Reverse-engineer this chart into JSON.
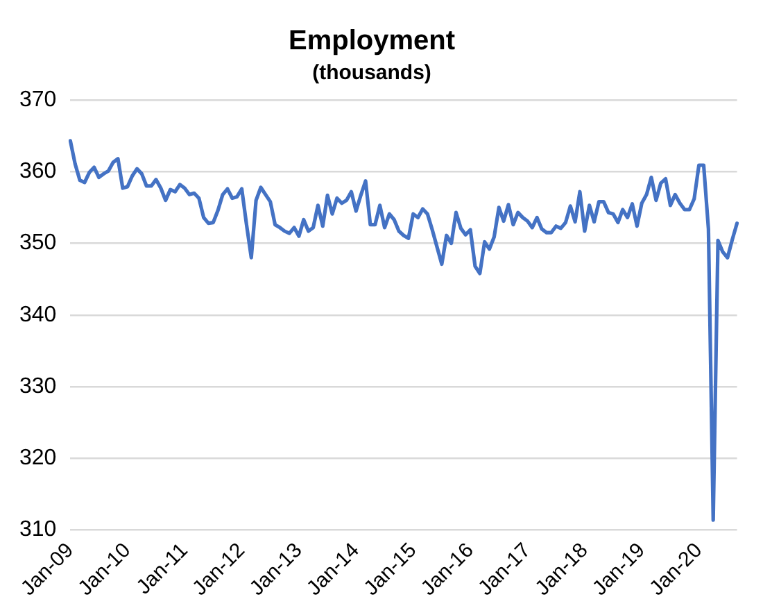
{
  "chart_data": {
    "type": "line",
    "title": "Employment",
    "subtitle": "(thousands)",
    "categories": [
      "Jan-09",
      null,
      null,
      null,
      null,
      null,
      null,
      null,
      null,
      null,
      null,
      null,
      "Jan-10",
      null,
      null,
      null,
      null,
      null,
      null,
      null,
      null,
      null,
      null,
      null,
      "Jan-11",
      null,
      null,
      null,
      null,
      null,
      null,
      null,
      null,
      null,
      null,
      null,
      "Jan-12",
      null,
      null,
      null,
      null,
      null,
      null,
      null,
      null,
      null,
      null,
      null,
      "Jan-13",
      null,
      null,
      null,
      null,
      null,
      null,
      null,
      null,
      null,
      null,
      null,
      "Jan-14",
      null,
      null,
      null,
      null,
      null,
      null,
      null,
      null,
      null,
      null,
      null,
      "Jan-15",
      null,
      null,
      null,
      null,
      null,
      null,
      null,
      null,
      null,
      null,
      null,
      "Jan-16",
      null,
      null,
      null,
      null,
      null,
      null,
      null,
      null,
      null,
      null,
      null,
      "Jan-17",
      null,
      null,
      null,
      null,
      null,
      null,
      null,
      null,
      null,
      null,
      null,
      "Jan-18",
      null,
      null,
      null,
      null,
      null,
      null,
      null,
      null,
      null,
      null,
      null,
      "Jan-19",
      null,
      null,
      null,
      null,
      null,
      null,
      null,
      null,
      null,
      null,
      null,
      "Jan-20",
      null,
      null,
      null,
      null,
      null,
      null,
      null,
      null
    ],
    "series": [
      {
        "color": "#4472c4",
        "values": [
          364.3,
          361.1,
          358.8,
          358.5,
          359.9,
          360.6,
          359.2,
          359.7,
          360.1,
          361.3,
          361.8,
          357.7,
          357.9,
          359.4,
          360.4,
          359.7,
          358.0,
          358.0,
          358.9,
          357.7,
          356.0,
          357.5,
          357.2,
          358.2,
          357.7,
          356.8,
          357.0,
          356.3,
          353.6,
          352.8,
          352.9,
          354.6,
          356.8,
          357.6,
          356.3,
          356.5,
          357.6,
          352.6,
          348.0,
          356.0,
          357.8,
          356.8,
          355.8,
          352.6,
          352.2,
          351.7,
          351.4,
          352.2,
          351.0,
          353.3,
          351.7,
          352.2,
          355.3,
          352.4,
          356.7,
          354.1,
          356.3,
          355.6,
          356.0,
          357.2,
          354.5,
          356.7,
          358.7,
          352.6,
          352.6,
          355.3,
          352.2,
          354.1,
          353.3,
          351.7,
          351.1,
          350.7,
          354.1,
          353.6,
          354.8,
          354.1,
          351.9,
          349.5,
          347.1,
          351.1,
          350.0,
          354.3,
          352.1,
          351.2,
          351.9,
          346.8,
          345.8,
          350.2,
          349.2,
          350.9,
          355.0,
          353.1,
          355.4,
          352.6,
          354.3,
          353.6,
          353.1,
          352.2,
          353.6,
          352.0,
          351.5,
          351.5,
          352.4,
          352.1,
          352.9,
          355.2,
          353.0,
          357.2,
          351.7,
          355.3,
          353.0,
          355.8,
          355.8,
          354.3,
          354.1,
          352.9,
          354.7,
          353.6,
          355.5,
          352.4,
          355.6,
          356.8,
          359.2,
          356.0,
          358.4,
          359.0,
          355.3,
          356.8,
          355.6,
          354.7,
          354.7,
          356.2,
          360.9,
          360.9,
          352.0,
          311.4,
          350.4,
          348.8,
          348.0,
          350.5,
          352.8
        ]
      }
    ],
    "ylim": [
      310,
      370
    ],
    "yticks": [
      310,
      320,
      330,
      340,
      350,
      360,
      370
    ],
    "grid": "y",
    "legend": false,
    "marker": "none",
    "line_style": "solid"
  }
}
